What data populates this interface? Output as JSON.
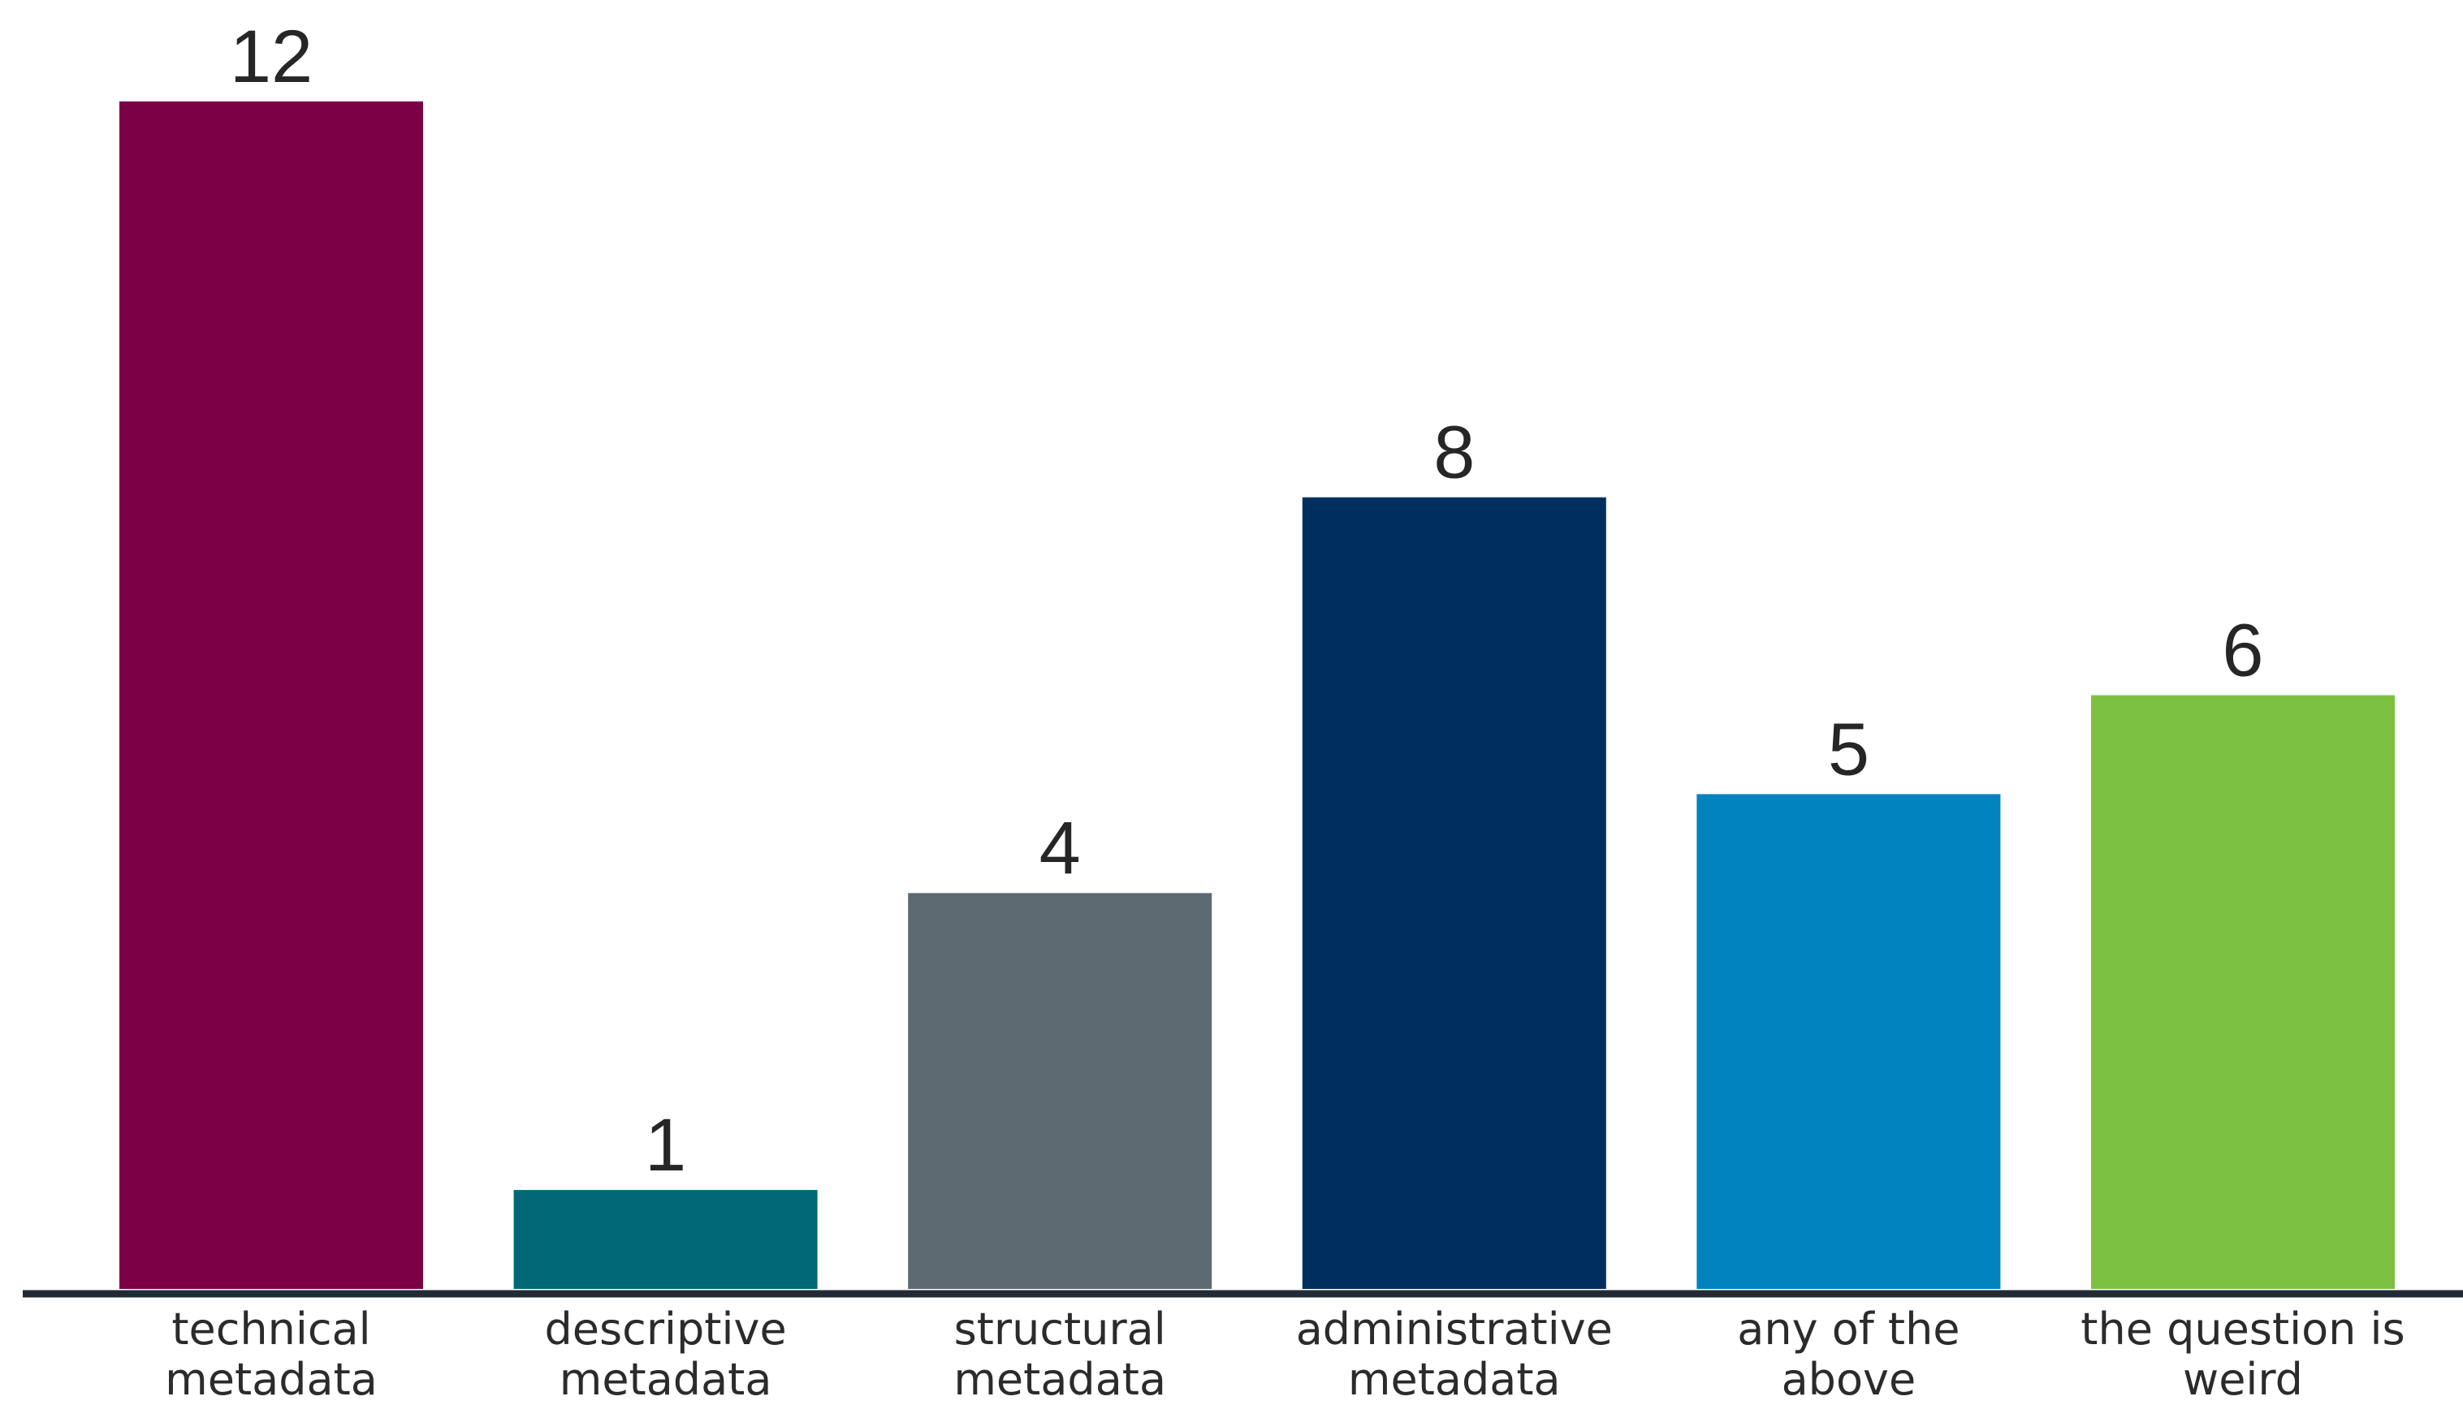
{
  "chart_data": {
    "type": "bar",
    "categories": [
      [
        "technical",
        "metadata"
      ],
      [
        "descriptive",
        "metadata"
      ],
      [
        "structural",
        "metadata"
      ],
      [
        "administrative",
        "metadata"
      ],
      [
        "any of the",
        "above"
      ],
      [
        "the question is",
        "weird"
      ]
    ],
    "values": [
      12,
      1,
      4,
      8,
      5,
      6
    ],
    "colors": [
      "#7b0046",
      "#006877",
      "#5e6a72",
      "#002f5f",
      "#0083be",
      "#7dc142"
    ],
    "axis_color": "#222a35",
    "ylim": [
      0,
      12
    ],
    "data_labels": true,
    "grid": false,
    "legend": "none",
    "title": "",
    "xlabel": "",
    "ylabel": ""
  }
}
